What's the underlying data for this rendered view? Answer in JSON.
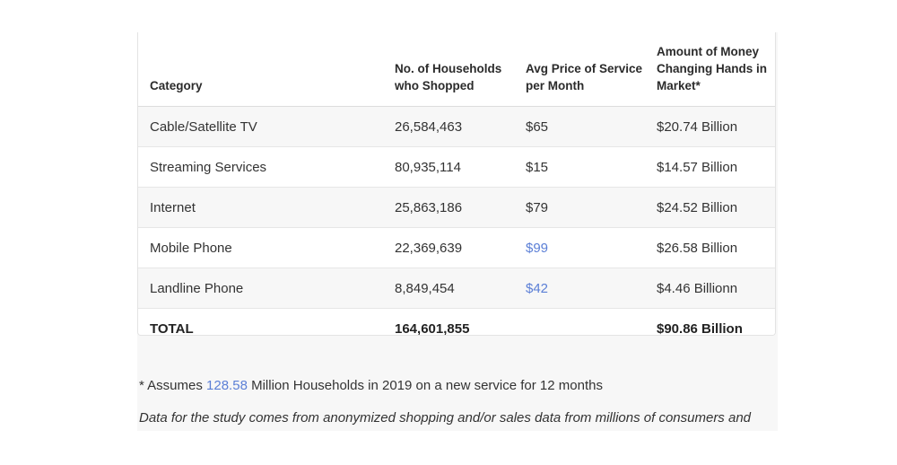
{
  "table": {
    "headers": [
      "Category",
      "No. of Households who Shopped",
      "Avg Price of Service per Month",
      "Amount of Money Changing Hands in Market*"
    ],
    "rows": [
      [
        "Cable/Satellite TV",
        "26,584,463",
        "$65",
        "$20.74 Billion"
      ],
      [
        "Streaming Services",
        "80,935,114",
        "$15",
        "$14.57 Billion"
      ],
      [
        "Internet",
        "25,863,186",
        "$79",
        "$24.52 Billion"
      ],
      [
        "Mobile Phone",
        "22,369,639",
        "$99",
        "$26.58 Billion"
      ],
      [
        "Landline Phone",
        "8,849,454",
        "$42",
        "$4.46 Billionn"
      ]
    ],
    "total": [
      "TOTAL",
      "164,601,855",
      "",
      "$90.86 Billion"
    ]
  },
  "footnote": {
    "prefix": "* Assumes ",
    "link_value": "128.58",
    "suffix": " Million Households in 2019 on a new service for 12 months"
  },
  "note": "Data for the study comes from anonymized shopping and/or sales data from millions of consumers and",
  "colors": {
    "link": "#5b7fd6",
    "row_stripe": "#f7f7f7"
  }
}
